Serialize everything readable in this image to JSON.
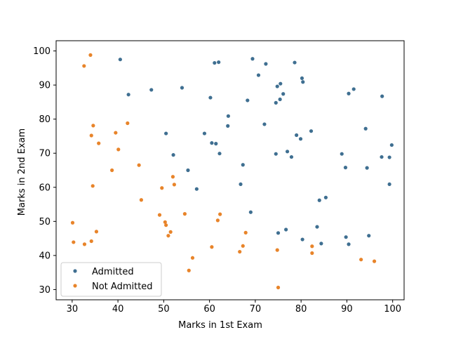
{
  "chart_data": {
    "type": "scatter",
    "xlabel": "Marks in 1st Exam",
    "ylabel": "Marks in 2nd Exam",
    "xlim": [
      26.5,
      102.5
    ],
    "ylim": [
      27,
      103
    ],
    "xticks": [
      30,
      40,
      50,
      60,
      70,
      80,
      90,
      100
    ],
    "yticks": [
      30,
      40,
      50,
      60,
      70,
      80,
      90,
      100
    ],
    "grid": false,
    "legend_position": "bottom-left",
    "series": [
      {
        "name": "Admitted",
        "color": "#3f6f91",
        "points": [
          [
            40.5,
            97.5
          ],
          [
            42.3,
            87.2
          ],
          [
            47.3,
            88.6
          ],
          [
            50.5,
            75.8
          ],
          [
            52.1,
            69.5
          ],
          [
            54.0,
            89.2
          ],
          [
            55.3,
            65.0
          ],
          [
            57.2,
            59.5
          ],
          [
            58.9,
            75.8
          ],
          [
            60.2,
            86.3
          ],
          [
            60.5,
            73.0
          ],
          [
            61.1,
            96.5
          ],
          [
            61.4,
            72.8
          ],
          [
            62.0,
            96.7
          ],
          [
            62.2,
            69.9
          ],
          [
            64.0,
            78.0
          ],
          [
            64.1,
            80.9
          ],
          [
            66.8,
            60.9
          ],
          [
            67.3,
            66.6
          ],
          [
            68.3,
            85.5
          ],
          [
            69.0,
            52.7
          ],
          [
            69.4,
            97.7
          ],
          [
            70.7,
            92.9
          ],
          [
            72.0,
            78.5
          ],
          [
            72.3,
            96.2
          ],
          [
            74.5,
            84.8
          ],
          [
            74.5,
            69.8
          ],
          [
            74.8,
            89.6
          ],
          [
            75.0,
            46.6
          ],
          [
            75.4,
            85.8
          ],
          [
            75.5,
            90.4
          ],
          [
            76.1,
            87.4
          ],
          [
            76.7,
            47.6
          ],
          [
            77.0,
            70.5
          ],
          [
            77.9,
            68.9
          ],
          [
            78.6,
            96.6
          ],
          [
            79.0,
            75.3
          ],
          [
            79.9,
            74.2
          ],
          [
            80.2,
            92.0
          ],
          [
            80.3,
            44.7
          ],
          [
            80.4,
            90.9
          ],
          [
            82.2,
            76.5
          ],
          [
            83.5,
            48.4
          ],
          [
            84.0,
            56.2
          ],
          [
            84.4,
            43.5
          ],
          [
            85.4,
            57.0
          ],
          [
            88.9,
            69.8
          ],
          [
            89.7,
            65.8
          ],
          [
            89.8,
            45.4
          ],
          [
            90.4,
            87.5
          ],
          [
            90.4,
            43.3
          ],
          [
            91.5,
            88.8
          ],
          [
            94.1,
            77.2
          ],
          [
            94.4,
            65.7
          ],
          [
            94.8,
            45.8
          ],
          [
            97.6,
            68.9
          ],
          [
            97.7,
            86.7
          ],
          [
            99.3,
            68.8
          ],
          [
            99.3,
            60.9
          ],
          [
            99.8,
            72.4
          ]
        ]
      },
      {
        "name": "Not Admitted",
        "color": "#e8842a",
        "points": [
          [
            30.1,
            49.6
          ],
          [
            30.3,
            43.9
          ],
          [
            32.6,
            95.6
          ],
          [
            32.7,
            43.3
          ],
          [
            34.0,
            98.8
          ],
          [
            34.2,
            75.2
          ],
          [
            34.2,
            44.2
          ],
          [
            34.5,
            60.4
          ],
          [
            34.6,
            78.1
          ],
          [
            35.3,
            47.0
          ],
          [
            35.8,
            72.9
          ],
          [
            38.7,
            65.0
          ],
          [
            39.5,
            76.0
          ],
          [
            40.1,
            71.1
          ],
          [
            42.1,
            78.8
          ],
          [
            44.6,
            66.5
          ],
          [
            45.1,
            56.3
          ],
          [
            49.1,
            51.9
          ],
          [
            49.6,
            59.8
          ],
          [
            50.3,
            49.8
          ],
          [
            50.5,
            48.9
          ],
          [
            51.0,
            45.8
          ],
          [
            51.5,
            46.9
          ],
          [
            52.0,
            63.1
          ],
          [
            52.3,
            60.8
          ],
          [
            54.6,
            52.2
          ],
          [
            55.5,
            35.6
          ],
          [
            56.3,
            39.3
          ],
          [
            60.5,
            42.5
          ],
          [
            61.8,
            50.3
          ],
          [
            62.3,
            52.1
          ],
          [
            66.6,
            41.1
          ],
          [
            67.3,
            42.8
          ],
          [
            67.9,
            46.7
          ],
          [
            74.8,
            41.6
          ],
          [
            75.0,
            30.6
          ],
          [
            82.4,
            42.7
          ],
          [
            82.4,
            40.7
          ],
          [
            93.1,
            38.8
          ],
          [
            96.0,
            38.3
          ]
        ]
      }
    ]
  }
}
